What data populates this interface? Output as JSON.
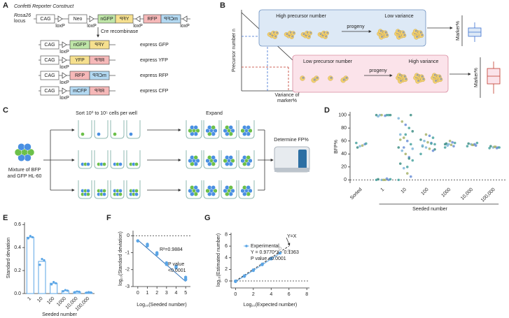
{
  "panel_labels": [
    "A",
    "B",
    "C",
    "D",
    "E",
    "F",
    "G"
  ],
  "construct": {
    "title": "Confetti Reporter Construct",
    "locus": [
      "Rosa26",
      "locus"
    ],
    "elements": [
      "CAG",
      "Neo",
      "nGFP",
      "YFP",
      "RFP",
      "mCFP"
    ],
    "element_colors": [
      "#ffffff",
      "#ffffff",
      "#bfe6a8",
      "#f6e08e",
      "#f6b8b8",
      "#b3d9f2"
    ],
    "loxp": "loxP",
    "cre": "Cre recombinase",
    "outcomes": [
      {
        "boxes": [
          "CAG",
          "nGFP",
          "YFP"
        ],
        "label": "express GFP"
      },
      {
        "boxes": [
          "CAG",
          "YFP",
          "RFP"
        ],
        "label": "express YFP"
      },
      {
        "boxes": [
          "CAG",
          "RFP",
          "mCFP"
        ],
        "label": "express RFP"
      },
      {
        "boxes": [
          "CAG",
          "mCFP",
          "RFP"
        ],
        "label": "express CFP"
      }
    ]
  },
  "model": {
    "y_label": "Precursor number n",
    "x_label": [
      "Variance of",
      "marker%"
    ],
    "high": {
      "left": "High precursor number",
      "arrow": "progeny",
      "right": "Low variance"
    },
    "low": {
      "left": "Low precursor number",
      "arrow": "progeny",
      "right": "High variance"
    },
    "marker_label": "Marker%"
  },
  "experiment": {
    "sort": "Sort 10⁰ to 10⁵ cells per well",
    "expand": "Expand",
    "determine": "Determine FP%",
    "mixture": [
      "Mixture of BFP",
      "and GFP HL-60"
    ]
  },
  "chart_data": [
    {
      "type": "strip",
      "y_label": "BFP%",
      "x_label": "Seeded number",
      "categories": [
        "Sorted",
        "1",
        "10",
        "100",
        "1000",
        "10,000",
        "100,000"
      ],
      "values": [
        [
          57,
          55,
          53,
          52,
          50,
          56
        ],
        [
          0,
          0,
          0,
          0,
          1,
          1,
          2,
          0,
          100,
          100,
          100,
          99,
          100,
          98,
          100,
          100
        ],
        [
          0,
          5,
          10,
          18,
          25,
          30,
          35,
          40,
          45,
          50,
          55,
          60,
          65,
          70,
          75,
          80,
          85,
          90,
          95,
          100,
          20,
          50,
          62,
          48,
          33,
          70
        ],
        [
          40,
          45,
          48,
          50,
          52,
          55,
          57,
          58,
          60,
          62,
          65,
          68,
          70,
          53,
          47,
          56
        ],
        [
          50,
          52,
          54,
          55,
          56,
          57,
          58,
          60,
          53,
          55
        ],
        [
          52,
          53,
          54,
          55,
          56,
          57,
          55,
          54
        ],
        [
          49,
          50,
          51,
          50,
          52,
          50,
          49,
          51
        ]
      ],
      "point_colors": [
        "#4aa3a0",
        "#6b8fd6",
        "#a7b36b",
        "#7fb6d9",
        "#3f8f86"
      ],
      "ylim": [
        -5,
        105
      ],
      "yticks": [
        0,
        20,
        40,
        60,
        80,
        100
      ],
      "reference_line": 0
    },
    {
      "type": "bar",
      "y_label": "Standard deviation",
      "x_label": "Seeded number",
      "categories": [
        "1",
        "10",
        "100",
        "1000",
        "10,000",
        "100,000"
      ],
      "values": [
        0.49,
        0.28,
        0.09,
        0.025,
        0.015,
        0.01
      ],
      "points": [
        [
          0.48,
          0.5,
          0.49
        ],
        [
          0.25,
          0.3,
          0.29
        ],
        [
          0.08,
          0.1,
          0.09
        ],
        [
          0.02,
          0.03,
          0.025
        ],
        [
          0.012,
          0.018,
          0.015
        ],
        [
          0.008,
          0.012,
          0.01
        ]
      ],
      "color": "#5aa5e6",
      "ylim": [
        0,
        0.62
      ],
      "yticks": [
        {
          "value": 0,
          "label": "0.0"
        },
        {
          "value": 0.2,
          "label": "0.2"
        },
        {
          "value": 0.4,
          "label": "0.4"
        },
        {
          "value": 0.6,
          "label": "0.6"
        }
      ]
    },
    {
      "type": "scatter",
      "y_label": "log₁₀(Standard deviation)",
      "x_label": "Log₁₀(Seeded number)",
      "series": [
        {
          "color": "#5aa5e6",
          "x": [
            0,
            0,
            0,
            1,
            1,
            1,
            2,
            2,
            2,
            3,
            3,
            3,
            4,
            4,
            4,
            5,
            5,
            5
          ],
          "y": [
            -0.3,
            -0.3,
            -0.31,
            -0.6,
            -0.5,
            -0.55,
            -1.1,
            -1.0,
            -1.05,
            -1.6,
            -1.7,
            -1.65,
            -1.8,
            -1.9,
            -1.85,
            -2.45,
            -2.55,
            -2.6
          ]
        }
      ],
      "fit": {
        "color": "#2f6fb5",
        "x": [
          0,
          5
        ],
        "y": [
          -0.25,
          -2.7
        ]
      },
      "annotations": [
        "R²=0.9884",
        "P value",
        "<0.0001"
      ],
      "xlim": [
        -0.5,
        5.5
      ],
      "ylim": [
        -3,
        0.3
      ],
      "xticks": [
        0,
        1,
        2,
        3,
        4,
        5
      ],
      "yticks": [
        0,
        -1,
        -2,
        -3
      ],
      "reference_line": 0
    },
    {
      "type": "scatter",
      "y_label": "log₁₀(Estimated number)",
      "x_label": "Log₁₀(Expected number)",
      "series": [
        {
          "name": "Experimental",
          "color": "#5aa5e6",
          "x": [
            0,
            0,
            1,
            1,
            2,
            2,
            3,
            3,
            4,
            4,
            5
          ],
          "y": [
            -0.1,
            0.0,
            0.8,
            0.9,
            1.8,
            1.9,
            2.8,
            2.9,
            3.8,
            3.9,
            4.8
          ]
        },
        {
          "color": "#aaaaaa",
          "x": [
            5,
            6
          ],
          "y": [
            5.6,
            5.2
          ]
        }
      ],
      "fit": {
        "color": "#5aa5e6",
        "x": [
          0,
          5
        ],
        "y": [
          -0.14,
          4.75
        ]
      },
      "identity": {
        "label": "Y=X",
        "x": [
          0,
          6
        ],
        "y": [
          0,
          6
        ]
      },
      "annotations": [
        "Y = 0.9770*X - 0.1363",
        "P value  <0.0001"
      ],
      "xlim": [
        -0.5,
        8.3
      ],
      "ylim": [
        -1.2,
        8.3
      ],
      "xticks": [
        0,
        2,
        4,
        6,
        8
      ],
      "yticks": [
        0,
        2,
        4,
        6,
        8
      ],
      "reference_line": 0
    }
  ]
}
